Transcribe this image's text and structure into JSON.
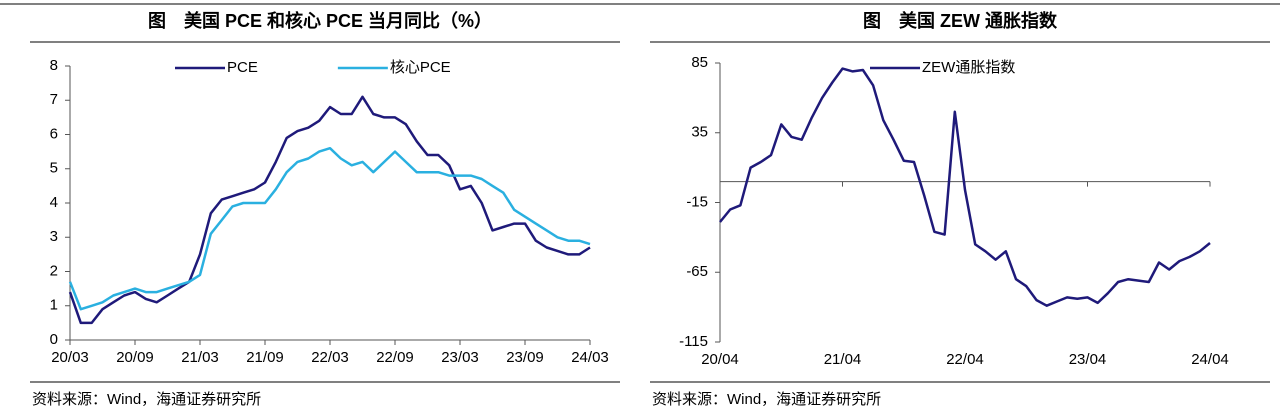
{
  "chart_data": [
    {
      "type": "line",
      "title": "图　美国 PCE 和核心 PCE 当月同比（%）",
      "source": "资料来源：Wind，海通证券研究所",
      "categories": [
        "20/03",
        null,
        null,
        null,
        null,
        null,
        "20/09",
        null,
        null,
        null,
        null,
        null,
        "21/03",
        null,
        null,
        null,
        null,
        null,
        "21/09",
        null,
        null,
        null,
        null,
        null,
        "22/03",
        null,
        null,
        null,
        null,
        null,
        "22/09",
        null,
        null,
        null,
        null,
        null,
        "23/03",
        null,
        null,
        null,
        null,
        null,
        "23/09",
        null,
        null,
        null,
        null,
        null,
        "24/03"
      ],
      "series": [
        {
          "name": "PCE",
          "color": "#1f1a7a",
          "values": [
            1.4,
            0.5,
            0.5,
            0.9,
            1.1,
            1.3,
            1.4,
            1.2,
            1.1,
            1.3,
            1.5,
            1.7,
            2.5,
            3.7,
            4.1,
            4.2,
            4.3,
            4.4,
            4.6,
            5.2,
            5.9,
            6.1,
            6.2,
            6.4,
            6.8,
            6.6,
            6.6,
            7.1,
            6.6,
            6.5,
            6.5,
            6.3,
            5.8,
            5.4,
            5.4,
            5.1,
            4.4,
            4.5,
            4.0,
            3.2,
            3.3,
            3.4,
            3.4,
            2.9,
            2.7,
            2.6,
            2.5,
            2.5,
            2.7
          ]
        },
        {
          "name": "核心PCE",
          "color": "#2ab0e0",
          "values": [
            1.7,
            0.9,
            1.0,
            1.1,
            1.3,
            1.4,
            1.5,
            1.4,
            1.4,
            1.5,
            1.6,
            1.7,
            1.9,
            3.1,
            3.5,
            3.9,
            4.0,
            4.0,
            4.0,
            4.4,
            4.9,
            5.2,
            5.3,
            5.5,
            5.6,
            5.3,
            5.1,
            5.2,
            4.9,
            5.2,
            5.5,
            5.2,
            4.9,
            4.9,
            4.9,
            4.8,
            4.8,
            4.8,
            4.7,
            4.5,
            4.3,
            3.8,
            3.6,
            3.4,
            3.2,
            3.0,
            2.9,
            2.9,
            2.8
          ]
        }
      ],
      "ylim": [
        0,
        8
      ],
      "yticks": [
        0,
        1,
        2,
        3,
        4,
        5,
        6,
        7,
        8
      ],
      "legend": "top"
    },
    {
      "type": "line",
      "title": "图　美国 ZEW 通胀指数",
      "source": "资料来源：Wind，海通证券研究所",
      "categories": [
        "20/04",
        null,
        null,
        null,
        null,
        null,
        null,
        null,
        null,
        null,
        null,
        null,
        "21/04",
        null,
        null,
        null,
        null,
        null,
        null,
        null,
        null,
        null,
        null,
        null,
        "22/04",
        null,
        null,
        null,
        null,
        null,
        null,
        null,
        null,
        null,
        null,
        null,
        "23/04",
        null,
        null,
        null,
        null,
        null,
        null,
        null,
        null,
        null,
        null,
        null,
        "24/04"
      ],
      "series": [
        {
          "name": "ZEW通胀指数",
          "color": "#1f1a7a",
          "values": [
            -29,
            -20,
            -17,
            10,
            14,
            19,
            41,
            32,
            30,
            46,
            60,
            71,
            81,
            79,
            80,
            69,
            44,
            30,
            15,
            14,
            -10,
            -36,
            -38,
            50,
            -6,
            -45,
            -50,
            -56,
            -50,
            -70,
            -75,
            -85,
            -89,
            -86,
            -83,
            -84,
            -83,
            -87,
            -80,
            -72,
            -70,
            -71,
            -72,
            -58,
            -63,
            -57,
            -54,
            -50,
            -44
          ]
        }
      ],
      "ylim": [
        -115,
        85
      ],
      "yticks": [
        -115,
        -65,
        -15,
        35,
        85
      ],
      "legend": "top"
    }
  ]
}
